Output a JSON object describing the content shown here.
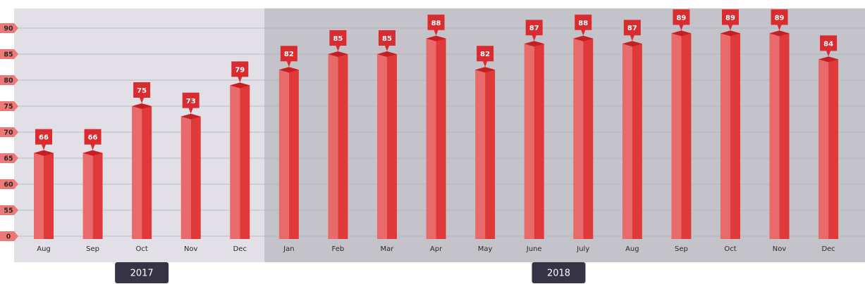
{
  "chart_data": {
    "type": "bar3d",
    "groups": [
      {
        "name": "2017",
        "background": "#e2e0e6",
        "categories": [
          "Aug",
          "Sep",
          "Oct",
          "Nov",
          "Dec"
        ],
        "values": [
          66,
          66,
          75,
          73,
          79
        ]
      },
      {
        "name": "2018",
        "background": "#c4c3c9",
        "categories": [
          "Jan",
          "Feb",
          "Mar",
          "Apr",
          "May",
          "June",
          "July",
          "Aug",
          "Sep",
          "Oct",
          "Nov",
          "Dec"
        ],
        "values": [
          82,
          85,
          85,
          88,
          82,
          87,
          88,
          87,
          89,
          89,
          89,
          84
        ]
      }
    ],
    "color": "#e0393a",
    "ylim": [
      0,
      90
    ],
    "yticks": [
      0,
      55,
      60,
      65,
      70,
      75,
      80,
      85,
      90
    ],
    "grid": true
  }
}
